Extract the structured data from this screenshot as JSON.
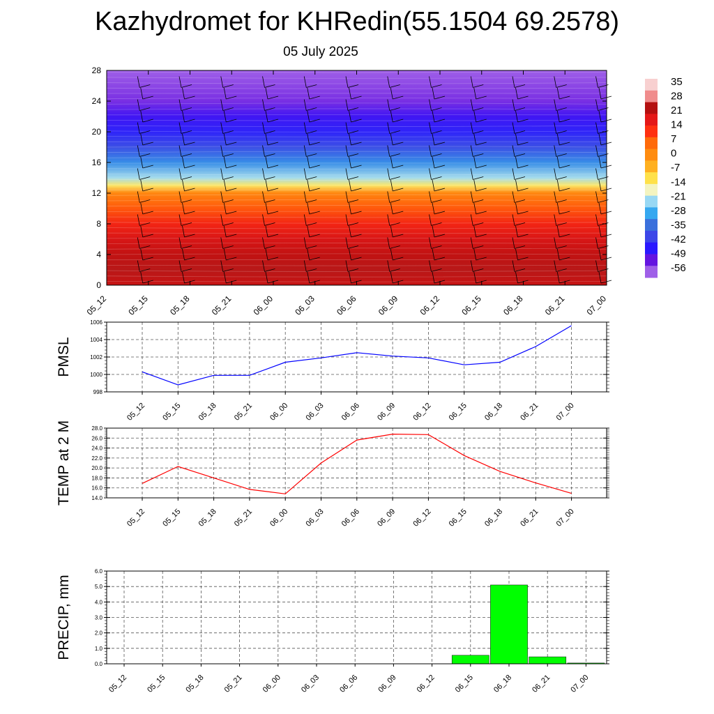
{
  "title": "Kazhydromet for KHRedin(55.1504 69.2578)",
  "subtitle": "05 July 2025",
  "chart_data": [
    {
      "type": "heatmap",
      "name": "temperature-wind-cross-section",
      "x_categories": [
        "05_12",
        "05_15",
        "05_18",
        "05_21",
        "06_00",
        "06_03",
        "06_06",
        "06_09",
        "06_12",
        "06_15",
        "06_18",
        "06_21",
        "07_00"
      ],
      "y_ticks": [
        0,
        4,
        8,
        12,
        16,
        20,
        24,
        28
      ],
      "ylim": [
        0,
        28
      ],
      "colorbar_labels": [
        "35",
        "28",
        "21",
        "14",
        "7",
        "0",
        "-7",
        "-14",
        "-21",
        "-28",
        "-35",
        "-42",
        "-49",
        "-56"
      ],
      "colorbar_range": [
        -60,
        39
      ],
      "profile_levels": [
        0,
        2,
        4,
        6,
        8,
        10,
        12,
        13,
        14,
        16,
        18,
        20,
        22,
        24,
        26,
        28
      ],
      "profile_values": [
        24,
        27,
        25,
        22,
        17,
        10,
        3,
        -12,
        -22,
        -32,
        -40,
        -46,
        -50,
        -56,
        -58,
        -60
      ],
      "colors": [
        "#9f5fe8",
        "#6414e0",
        "#2a18ff",
        "#3c46e8",
        "#3a70dc",
        "#36a8f0",
        "#98d8f4",
        "#f4f4c0",
        "#ffe14a",
        "#ffb020",
        "#ff8c10",
        "#ff6a0a",
        "#ff3010",
        "#e41818",
        "#b41010",
        "#f08c8c",
        "#f8d0d0"
      ]
    },
    {
      "type": "line",
      "name": "PMSL",
      "ylabel": "PMSL",
      "categories": [
        "05_12",
        "05_15",
        "05_18",
        "05_21",
        "06_00",
        "06_03",
        "06_06",
        "06_09",
        "06_12",
        "06_15",
        "06_18",
        "06_21",
        "07_00"
      ],
      "values": [
        1000.3,
        998.8,
        999.9,
        999.9,
        1001.4,
        1001.9,
        1002.5,
        1002.1,
        1001.9,
        1001.1,
        1001.4,
        1003.2,
        1005.6
      ],
      "ylim": [
        998,
        1006
      ],
      "yticks": [
        "998",
        "1000",
        "1002",
        "1004",
        "1006"
      ],
      "color": "#0000ff",
      "grid": true
    },
    {
      "type": "line",
      "name": "TEMP at 2 M",
      "ylabel": "TEMP at 2 M",
      "categories": [
        "05_12",
        "05_15",
        "05_18",
        "05_21",
        "06_00",
        "06_03",
        "06_06",
        "06_09",
        "06_12",
        "06_15",
        "06_18",
        "06_21",
        "07_00"
      ],
      "values": [
        16.9,
        20.3,
        18.0,
        15.7,
        14.8,
        21.0,
        25.6,
        26.8,
        26.7,
        22.5,
        19.3,
        17.0,
        14.9
      ],
      "ylim": [
        14,
        28
      ],
      "yticks": [
        "14.0",
        "16.0",
        "18.0",
        "20.0",
        "22.0",
        "24.0",
        "26.0",
        "28.0"
      ],
      "color": "#ff0000",
      "grid": true
    },
    {
      "type": "bar",
      "name": "PRECIP, mm",
      "ylabel": "PRECIP, mm",
      "categories": [
        "05_12",
        "05_15",
        "05_18",
        "05_21",
        "06_00",
        "06_03",
        "06_06",
        "06_09",
        "06_12",
        "06_15",
        "06_18",
        "06_21",
        "07_00"
      ],
      "values": [
        0,
        0,
        0,
        0,
        0,
        0,
        0,
        0,
        0,
        0.55,
        5.1,
        0.45,
        0.05
      ],
      "ylim": [
        0,
        6
      ],
      "yticks": [
        "0.0",
        "1.0",
        "2.0",
        "3.0",
        "4.0",
        "5.0",
        "6.0"
      ],
      "color": "#00ff00",
      "grid": true
    }
  ]
}
